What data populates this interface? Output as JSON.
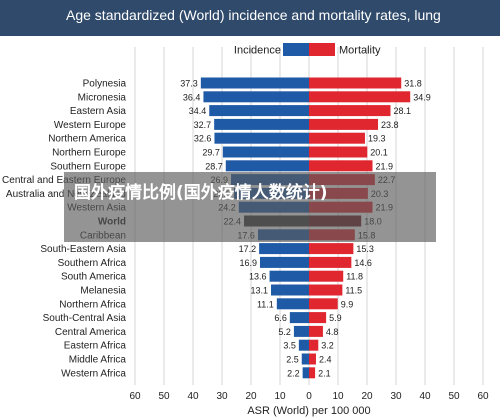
{
  "page": {
    "title": "Age standardized (World) incidence and mortality rates, lung"
  },
  "overlay": {
    "text": "国外疫情比例(国外疫情人数统计)"
  },
  "colors": {
    "incidence": "#1f5aa6",
    "mortality": "#e0262f",
    "world_incidence": "#383838",
    "world_mortality": "#6a1a1f",
    "grid": "#d6d6d6",
    "header": "#2f4a6a"
  },
  "chart_data": {
    "type": "bar",
    "orientation": "horizontal",
    "layout": "back-to-back",
    "title": "",
    "xlabel": "ASR (World) per 100 000",
    "xlim": [
      -60,
      60
    ],
    "x_ticks": [
      -60,
      -50,
      -40,
      -30,
      -20,
      -10,
      0,
      10,
      20,
      30,
      40,
      50,
      60
    ],
    "x_tick_labels": [
      "60",
      "50",
      "40",
      "30",
      "20",
      "10",
      "0",
      "10",
      "20",
      "30",
      "40",
      "50",
      "60"
    ],
    "grid": true,
    "legend_position": "top-center",
    "highlight_category": "World",
    "categories": [
      "Polynesia",
      "Micronesia",
      "Eastern Asia",
      "Western Europe",
      "Northern America",
      "Northern Europe",
      "Southern Europe",
      "Central and Eastern Europe",
      "Australia and New Zealand",
      "Western Asia",
      "World",
      "Caribbean",
      "South-Eastern Asia",
      "Southern Africa",
      "South America",
      "Melanesia",
      "Northern Africa",
      "South-Central Asia",
      "Central America",
      "Eastern Africa",
      "Middle Africa",
      "Western Africa"
    ],
    "series": [
      {
        "name": "Incidence",
        "side": "left",
        "values": [
          37.3,
          36.4,
          34.4,
          32.7,
          32.6,
          29.7,
          28.7,
          26.9,
          25.9,
          24.2,
          22.4,
          17.6,
          17.2,
          16.9,
          13.6,
          13.1,
          11.1,
          6.6,
          5.2,
          3.5,
          2.5,
          2.2
        ]
      },
      {
        "name": "Mortality",
        "side": "right",
        "values": [
          31.8,
          34.9,
          28.1,
          23.8,
          19.3,
          20.1,
          21.9,
          22.7,
          20.3,
          21.9,
          18.0,
          15.8,
          15.3,
          14.6,
          11.8,
          11.5,
          9.9,
          5.9,
          4.8,
          3.2,
          2.4,
          2.1
        ]
      }
    ]
  }
}
